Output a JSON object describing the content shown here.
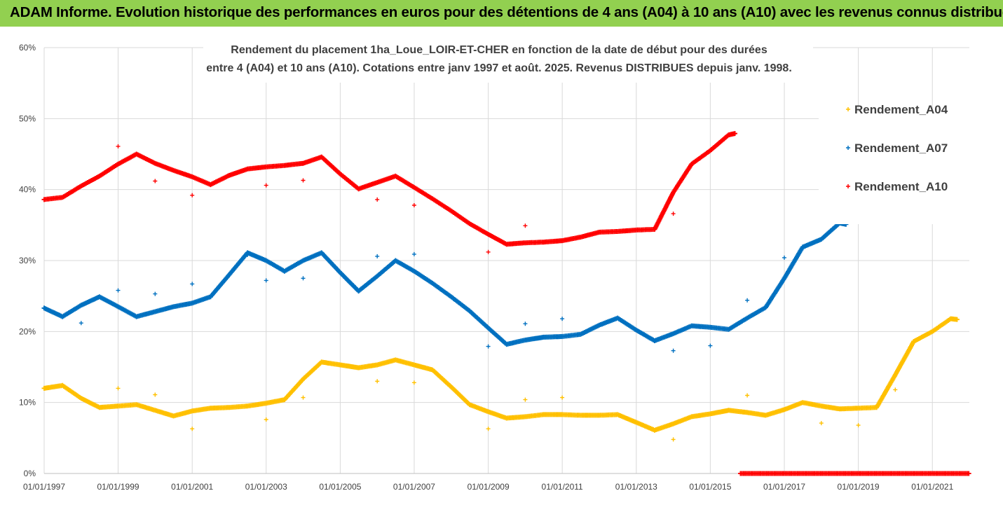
{
  "banner": {
    "title": "ADAM Informe. Evolution historique des performances en euros pour des détentions de 4 ans (A04) à 10 ans (A10) avec les revenus connus distribués",
    "background": "#92d050"
  },
  "chart_data": {
    "type": "scatter",
    "title_line1": "Rendement du placement 1ha_Loue_LOIR-ET-CHER en fonction de la date de début pour des durées",
    "title_line2": "entre 4 (A04) et 10 ans (A10). Cotations entre janv 1997 et août. 2025. Revenus DISTRIBUES depuis janv. 1998.",
    "xlabel": "",
    "ylabel": "",
    "xlim": [
      "1997-01-01",
      "2022-01-01"
    ],
    "ylim": [
      0,
      0.6
    ],
    "y_ticks": [
      0,
      0.1,
      0.2,
      0.3,
      0.4,
      0.5,
      0.6
    ],
    "y_tick_labels": [
      "0%",
      "10%",
      "20%",
      "30%",
      "40%",
      "50%",
      "60%"
    ],
    "x_ticks": [
      "1997-01-01",
      "1999-01-01",
      "2001-01-01",
      "2003-01-01",
      "2005-01-01",
      "2007-01-01",
      "2009-01-01",
      "2011-01-01",
      "2013-01-01",
      "2015-01-01",
      "2017-01-01",
      "2019-01-01",
      "2021-01-01"
    ],
    "x_tick_labels": [
      "01/01/1997",
      "01/01/1999",
      "01/01/2001",
      "01/01/2003",
      "01/01/2005",
      "01/01/2007",
      "01/01/2009",
      "01/01/2011",
      "01/01/2013",
      "01/01/2015",
      "01/01/2017",
      "01/01/2019",
      "01/01/2021"
    ],
    "grid": true,
    "legend_position": "top-right",
    "series": [
      {
        "name": "Rendement_A04",
        "color": "#ffc000",
        "marker": "+",
        "curve": [
          [
            "1997-01-01",
            0.12
          ],
          [
            "1997-07-01",
            0.124
          ],
          [
            "1998-01-01",
            0.106
          ],
          [
            "1998-07-01",
            0.093
          ],
          [
            "1999-01-01",
            0.095
          ],
          [
            "1999-07-01",
            0.097
          ],
          [
            "2000-01-01",
            0.089
          ],
          [
            "2000-07-01",
            0.081
          ],
          [
            "2001-01-01",
            0.088
          ],
          [
            "2001-07-01",
            0.092
          ],
          [
            "2002-01-01",
            0.093
          ],
          [
            "2002-07-01",
            0.095
          ],
          [
            "2003-01-01",
            0.099
          ],
          [
            "2003-07-01",
            0.104
          ],
          [
            "2004-01-01",
            0.133
          ],
          [
            "2004-07-01",
            0.157
          ],
          [
            "2005-01-01",
            0.153
          ],
          [
            "2005-07-01",
            0.149
          ],
          [
            "2006-01-01",
            0.153
          ],
          [
            "2006-07-01",
            0.16
          ],
          [
            "2007-01-01",
            0.153
          ],
          [
            "2007-07-01",
            0.146
          ],
          [
            "2008-01-01",
            0.122
          ],
          [
            "2008-07-01",
            0.097
          ],
          [
            "2009-01-01",
            0.087
          ],
          [
            "2009-07-01",
            0.078
          ],
          [
            "2010-01-01",
            0.08
          ],
          [
            "2010-07-01",
            0.083
          ],
          [
            "2011-01-01",
            0.083
          ],
          [
            "2011-07-01",
            0.082
          ],
          [
            "2012-01-01",
            0.082
          ],
          [
            "2012-07-01",
            0.083
          ],
          [
            "2013-01-01",
            0.072
          ],
          [
            "2013-07-01",
            0.061
          ],
          [
            "2014-01-01",
            0.07
          ],
          [
            "2014-07-01",
            0.08
          ],
          [
            "2015-01-01",
            0.084
          ],
          [
            "2015-07-01",
            0.089
          ],
          [
            "2016-01-01",
            0.086
          ],
          [
            "2016-07-01",
            0.082
          ],
          [
            "2017-01-01",
            0.09
          ],
          [
            "2017-07-01",
            0.1
          ],
          [
            "2018-01-01",
            0.095
          ],
          [
            "2018-07-01",
            0.091
          ],
          [
            "2019-01-01",
            0.092
          ],
          [
            "2019-07-01",
            0.093
          ],
          [
            "2020-01-01",
            0.139
          ],
          [
            "2020-07-01",
            0.186
          ],
          [
            "2021-01-01",
            0.2
          ],
          [
            "2021-07-01",
            0.218
          ],
          [
            "2021-09-01",
            0.217
          ]
        ],
        "outliers": [
          [
            "1999-01-01",
            0.12
          ],
          [
            "2000-01-01",
            0.111
          ],
          [
            "2001-01-01",
            0.063
          ],
          [
            "2003-01-01",
            0.076
          ],
          [
            "2004-01-01",
            0.107
          ],
          [
            "2006-01-01",
            0.13
          ],
          [
            "2007-01-01",
            0.128
          ],
          [
            "2009-01-01",
            0.063
          ],
          [
            "2010-01-01",
            0.104
          ],
          [
            "2011-01-01",
            0.107
          ],
          [
            "2014-01-01",
            0.048
          ],
          [
            "2016-01-01",
            0.11
          ],
          [
            "2018-01-01",
            0.071
          ],
          [
            "2019-01-01",
            0.068
          ],
          [
            "2020-01-01",
            0.118
          ]
        ]
      },
      {
        "name": "Rendement_A07",
        "color": "#0070c0",
        "marker": "+",
        "curve": [
          [
            "1997-01-01",
            0.233
          ],
          [
            "1997-07-01",
            0.221
          ],
          [
            "1998-01-01",
            0.237
          ],
          [
            "1998-07-01",
            0.249
          ],
          [
            "1999-01-01",
            0.235
          ],
          [
            "1999-07-01",
            0.221
          ],
          [
            "2000-01-01",
            0.228
          ],
          [
            "2000-07-01",
            0.235
          ],
          [
            "2001-01-01",
            0.24
          ],
          [
            "2001-07-01",
            0.249
          ],
          [
            "2002-01-01",
            0.28
          ],
          [
            "2002-07-01",
            0.311
          ],
          [
            "2003-01-01",
            0.3
          ],
          [
            "2003-07-01",
            0.285
          ],
          [
            "2004-01-01",
            0.3
          ],
          [
            "2004-07-01",
            0.311
          ],
          [
            "2005-01-01",
            0.283
          ],
          [
            "2005-07-01",
            0.257
          ],
          [
            "2006-01-01",
            0.278
          ],
          [
            "2006-07-01",
            0.3
          ],
          [
            "2007-01-01",
            0.285
          ],
          [
            "2007-07-01",
            0.268
          ],
          [
            "2008-01-01",
            0.249
          ],
          [
            "2008-07-01",
            0.229
          ],
          [
            "2009-01-01",
            0.205
          ],
          [
            "2009-07-01",
            0.182
          ],
          [
            "2010-01-01",
            0.188
          ],
          [
            "2010-07-01",
            0.192
          ],
          [
            "2011-01-01",
            0.193
          ],
          [
            "2011-07-01",
            0.196
          ],
          [
            "2012-01-01",
            0.209
          ],
          [
            "2012-07-01",
            0.219
          ],
          [
            "2013-01-01",
            0.202
          ],
          [
            "2013-07-01",
            0.187
          ],
          [
            "2014-01-01",
            0.197
          ],
          [
            "2014-07-01",
            0.208
          ],
          [
            "2015-01-01",
            0.206
          ],
          [
            "2015-07-01",
            0.203
          ],
          [
            "2016-01-01",
            0.219
          ],
          [
            "2016-07-01",
            0.234
          ],
          [
            "2017-01-01",
            0.275
          ],
          [
            "2017-07-01",
            0.319
          ],
          [
            "2018-01-01",
            0.33
          ],
          [
            "2018-07-01",
            0.353
          ],
          [
            "2018-09-01",
            0.351
          ]
        ],
        "outliers": [
          [
            "1998-01-01",
            0.212
          ],
          [
            "1999-01-01",
            0.258
          ],
          [
            "2000-01-01",
            0.253
          ],
          [
            "2001-01-01",
            0.267
          ],
          [
            "2002-07-01",
            0.308
          ],
          [
            "2003-01-01",
            0.272
          ],
          [
            "2004-01-01",
            0.275
          ],
          [
            "2006-01-01",
            0.306
          ],
          [
            "2007-01-01",
            0.309
          ],
          [
            "2009-01-01",
            0.179
          ],
          [
            "2010-01-01",
            0.211
          ],
          [
            "2011-01-01",
            0.218
          ],
          [
            "2014-01-01",
            0.173
          ],
          [
            "2015-01-01",
            0.18
          ],
          [
            "2016-01-01",
            0.244
          ],
          [
            "2017-01-01",
            0.304
          ]
        ]
      },
      {
        "name": "Rendement_A10",
        "color": "#ff0000",
        "marker": "+",
        "curve": [
          [
            "1997-01-01",
            0.386
          ],
          [
            "1997-07-01",
            0.389
          ],
          [
            "1998-01-01",
            0.405
          ],
          [
            "1998-07-01",
            0.419
          ],
          [
            "1999-01-01",
            0.436
          ],
          [
            "1999-07-01",
            0.45
          ],
          [
            "2000-01-01",
            0.437
          ],
          [
            "2000-07-01",
            0.427
          ],
          [
            "2001-01-01",
            0.418
          ],
          [
            "2001-07-01",
            0.407
          ],
          [
            "2002-01-01",
            0.42
          ],
          [
            "2002-07-01",
            0.429
          ],
          [
            "2003-01-01",
            0.432
          ],
          [
            "2003-07-01",
            0.434
          ],
          [
            "2004-01-01",
            0.437
          ],
          [
            "2004-07-01",
            0.446
          ],
          [
            "2005-01-01",
            0.422
          ],
          [
            "2005-07-01",
            0.401
          ],
          [
            "2006-01-01",
            0.41
          ],
          [
            "2006-07-01",
            0.419
          ],
          [
            "2007-01-01",
            0.403
          ],
          [
            "2007-07-01",
            0.387
          ],
          [
            "2008-01-01",
            0.37
          ],
          [
            "2008-07-01",
            0.352
          ],
          [
            "2009-01-01",
            0.337
          ],
          [
            "2009-07-01",
            0.323
          ],
          [
            "2010-01-01",
            0.325
          ],
          [
            "2010-07-01",
            0.326
          ],
          [
            "2011-01-01",
            0.328
          ],
          [
            "2011-07-01",
            0.333
          ],
          [
            "2012-01-01",
            0.34
          ],
          [
            "2012-07-01",
            0.341
          ],
          [
            "2013-01-01",
            0.343
          ],
          [
            "2013-07-01",
            0.344
          ],
          [
            "2014-01-01",
            0.396
          ],
          [
            "2014-07-01",
            0.436
          ],
          [
            "2015-01-01",
            0.455
          ],
          [
            "2015-07-01",
            0.477
          ],
          [
            "2015-09-01",
            0.479
          ]
        ],
        "outliers": [
          [
            "1999-01-01",
            0.461
          ],
          [
            "2000-01-01",
            0.412
          ],
          [
            "2001-01-01",
            0.392
          ],
          [
            "2003-01-01",
            0.406
          ],
          [
            "2004-01-01",
            0.413
          ],
          [
            "2006-01-01",
            0.386
          ],
          [
            "2007-01-01",
            0.378
          ],
          [
            "2009-01-01",
            0.312
          ],
          [
            "2010-01-01",
            0.349
          ],
          [
            "2014-01-01",
            0.366
          ]
        ],
        "zero_run": [
          "2015-09-01",
          "2022-01-01"
        ]
      }
    ]
  }
}
